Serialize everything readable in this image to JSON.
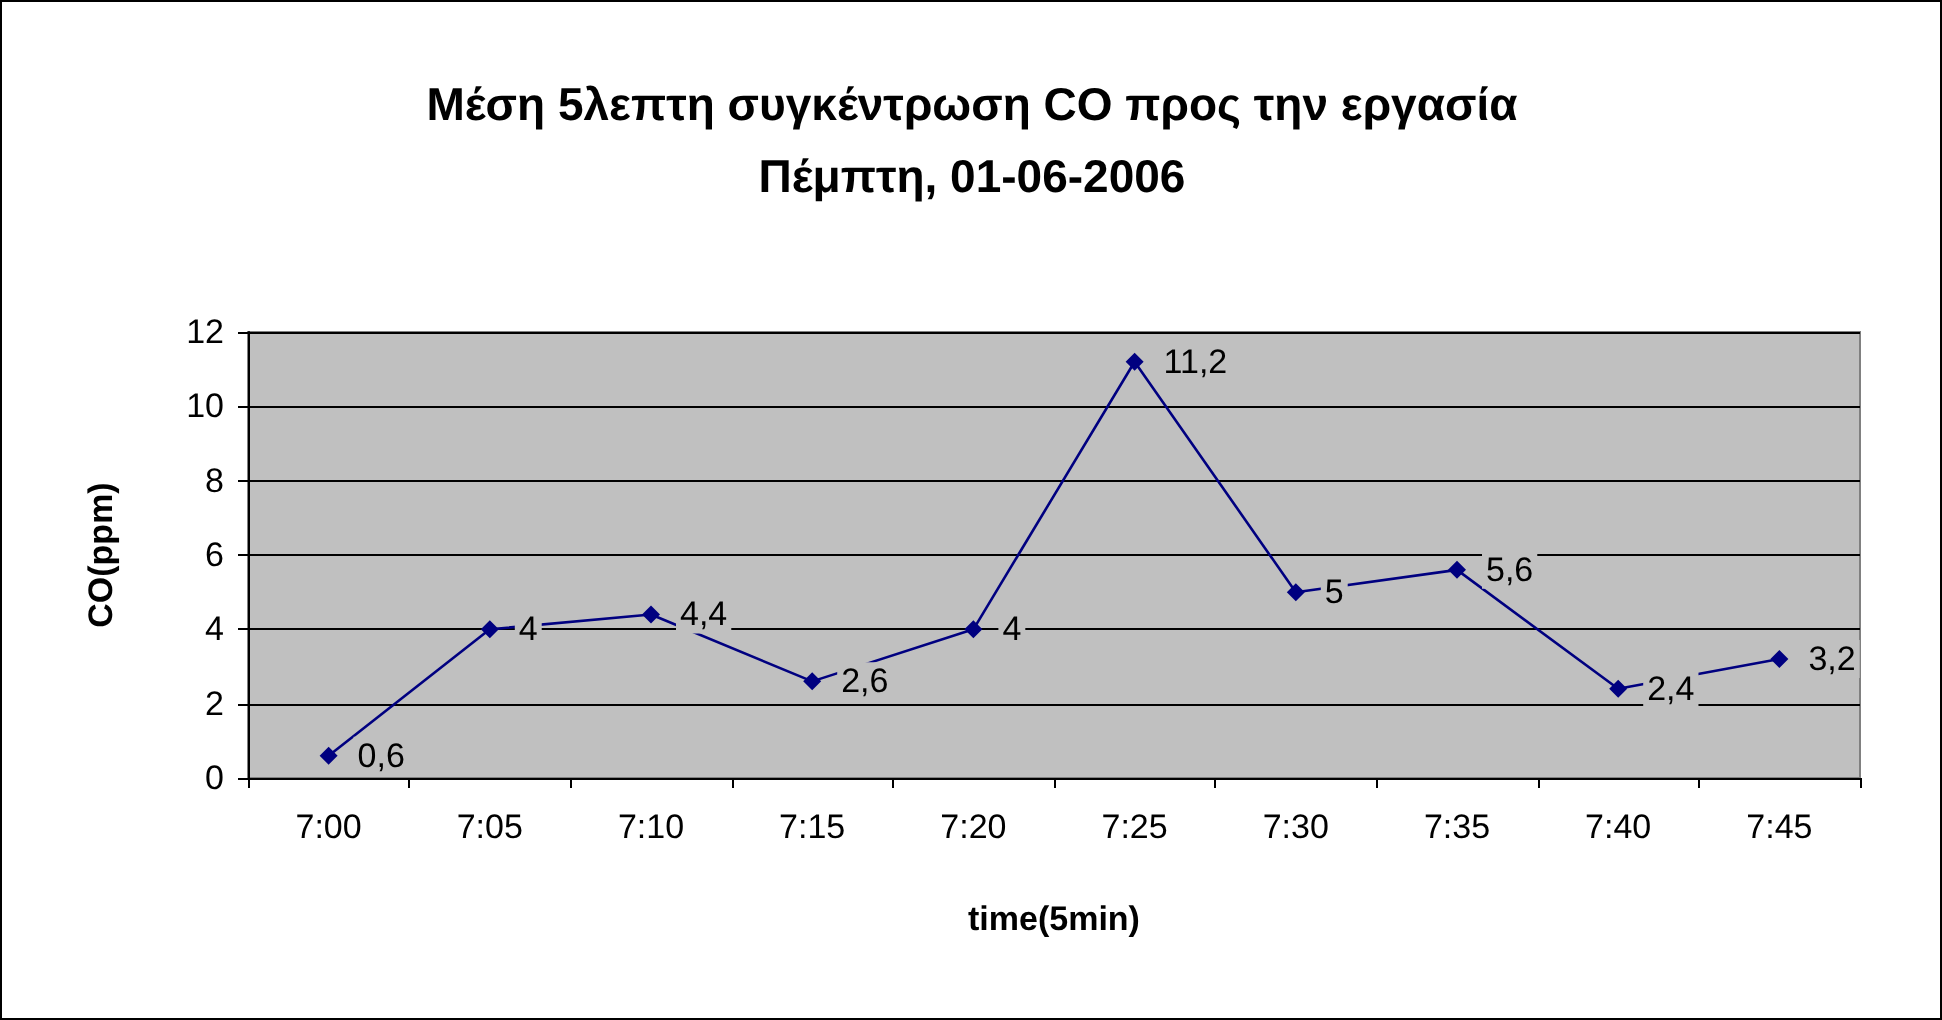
{
  "chart_data": {
    "type": "line",
    "title": "Μέση 5λεπτη συγκέντρωση CO προς την εργασία",
    "subtitle": "Πέμπτη, 01-06-2006",
    "xlabel": "time(5min)",
    "ylabel": "CO(ppm)",
    "categories": [
      "7:00",
      "7:05",
      "7:10",
      "7:15",
      "7:20",
      "7:25",
      "7:30",
      "7:35",
      "7:40",
      "7:45"
    ],
    "series": [
      {
        "color": "#000080",
        "values": [
          0.6,
          4,
          4.4,
          2.6,
          4,
          11.2,
          5,
          5.6,
          2.4,
          3.2
        ],
        "value_labels": [
          "0,6",
          "4",
          "4,4",
          "2,6",
          "4",
          "11,2",
          "5",
          "5,6",
          "2,4",
          "3,2"
        ]
      }
    ],
    "ylim": [
      0,
      12
    ],
    "yticks": [
      0,
      2,
      4,
      6,
      8,
      10,
      12
    ],
    "grid": "y",
    "marker": "diamond",
    "line_style": "solid"
  }
}
